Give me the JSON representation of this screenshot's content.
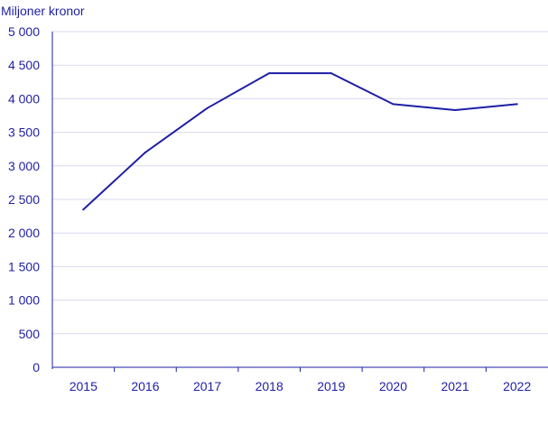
{
  "chart_data": {
    "type": "line",
    "title": "",
    "ylabel": "Miljoner kronor",
    "xlabel": "",
    "x": [
      "2015",
      "2016",
      "2017",
      "2018",
      "2019",
      "2020",
      "2021",
      "2022"
    ],
    "series": [
      {
        "values": [
          2350,
          3200,
          3860,
          4380,
          4380,
          3920,
          3830,
          3920
        ]
      }
    ],
    "ylim": [
      0,
      5000
    ],
    "y_ticks": [
      0,
      500,
      1000,
      1500,
      2000,
      2500,
      3000,
      3500,
      4000,
      4500,
      5000
    ],
    "y_tick_labels": [
      "0",
      "500",
      "1 000",
      "1 500",
      "2 000",
      "2 500",
      "3 000",
      "3 500",
      "4 000",
      "4 500",
      "5 000"
    ],
    "grid": true,
    "legend": "none",
    "colors": {
      "line": "#1f1fa6",
      "axis": "#1f1fa6",
      "grid": "#d9d9f0",
      "text": "#1f1fa6"
    }
  }
}
